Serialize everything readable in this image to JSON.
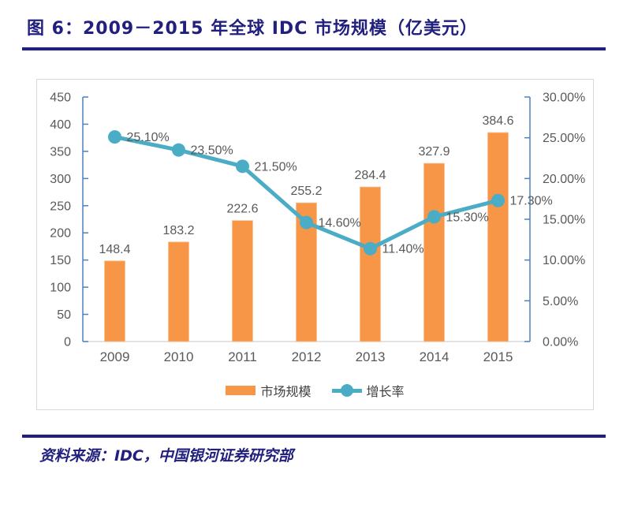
{
  "header": {
    "title": "图 6：2009－2015 年全球 IDC 市场规模（亿美元）"
  },
  "footer": {
    "source": "资料来源：IDC，中国银河证券研究部"
  },
  "colors": {
    "accent_navy": "#22207F",
    "bar_fill": "#F79646",
    "bar_stroke": "#FAC08F",
    "line_color": "#4BACC6",
    "axis_blue": "#4F81BD",
    "axis_gray": "#D9D9D9",
    "label_gray": "#595959",
    "legend_text": "#404040"
  },
  "chart_data": {
    "type": "bar",
    "subtype": "combo-bar-line",
    "title": "2009－2015 年全球 IDC 市场规模（亿美元）",
    "categories": [
      "2009",
      "2010",
      "2011",
      "2012",
      "2013",
      "2014",
      "2015"
    ],
    "series": [
      {
        "name": "市场规模",
        "type": "bar",
        "axis": "left",
        "color": "#F79646",
        "values": [
          148.4,
          183.2,
          222.6,
          255.2,
          284.4,
          327.9,
          384.6
        ],
        "labels": [
          "148.4",
          "183.2",
          "222.6",
          "255.2",
          "284.4",
          "327.9",
          "384.6"
        ]
      },
      {
        "name": "增长率",
        "type": "line",
        "axis": "right",
        "color": "#4BACC6",
        "values": [
          25.1,
          23.5,
          21.5,
          14.6,
          11.4,
          15.3,
          17.3
        ],
        "labels": [
          "25.10%",
          "23.50%",
          "21.50%",
          "14.60%",
          "11.40%",
          "15.30%",
          "17.30%"
        ]
      }
    ],
    "left_axis": {
      "min": 0,
      "max": 450,
      "step": 50,
      "tick_values": [
        450,
        400,
        350,
        300,
        250,
        200,
        150,
        100,
        50,
        0
      ],
      "tick_labels": [
        "450",
        "400",
        "350",
        "300",
        "250",
        "200",
        "150",
        "100",
        "50",
        "0"
      ]
    },
    "right_axis": {
      "min": 0,
      "max": 30,
      "step": 5,
      "tick_values": [
        30,
        25,
        20,
        15,
        10,
        5,
        0
      ],
      "tick_labels": [
        "30.00%",
        "25.00%",
        "20.00%",
        "15.00%",
        "10.00%",
        "5.00%",
        "0.00%"
      ]
    },
    "grid": false,
    "legend_position": "bottom",
    "legend": [
      "市场规模",
      "增长率"
    ]
  }
}
